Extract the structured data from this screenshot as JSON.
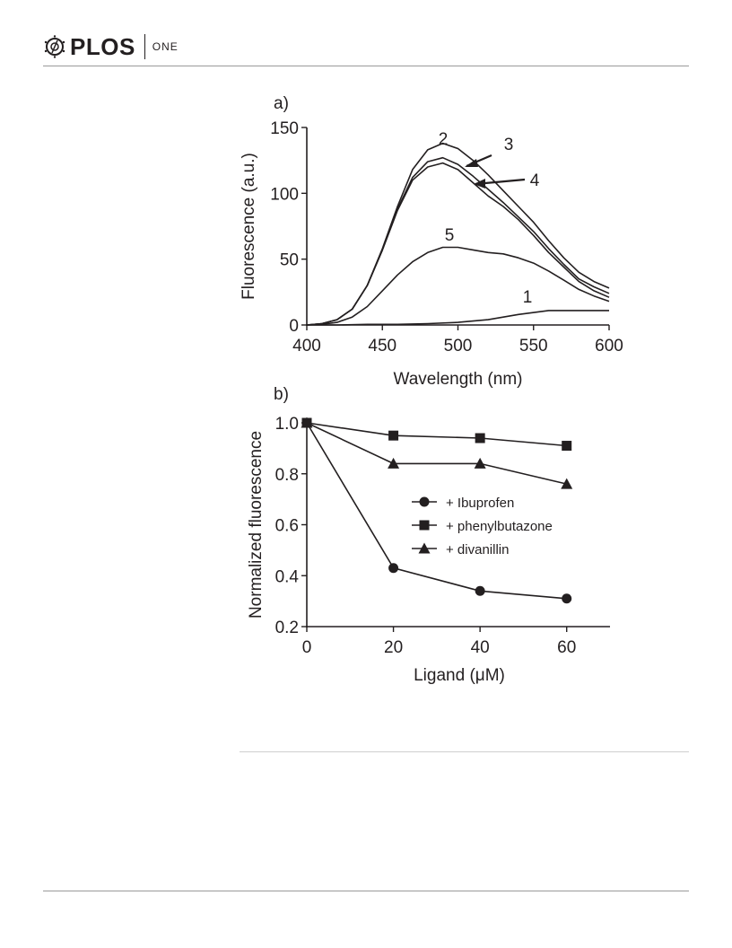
{
  "header": {
    "journal": "PLOS",
    "journal_sub": "ONE"
  },
  "chart_data": [
    {
      "panel_label": "a)",
      "type": "line",
      "title": "",
      "xlabel": "Wavelength (nm)",
      "ylabel": "Fluorescence (a.u.)",
      "xlim": [
        400,
        600
      ],
      "ylim": [
        0,
        150
      ],
      "x_ticks": [
        400,
        450,
        500,
        550,
        600
      ],
      "y_ticks": [
        0,
        50,
        100,
        150
      ],
      "grid": false,
      "series": [
        {
          "name": "1",
          "x": [
            400,
            420,
            440,
            460,
            480,
            500,
            520,
            540,
            560,
            580,
            600
          ],
          "values": [
            0,
            0,
            0.5,
            0.5,
            1,
            2,
            4,
            8,
            11,
            11,
            11
          ]
        },
        {
          "name": "2",
          "x": [
            400,
            410,
            420,
            430,
            440,
            450,
            460,
            470,
            480,
            490,
            500,
            510,
            520,
            530,
            540,
            550,
            560,
            570,
            580,
            590,
            600
          ],
          "values": [
            0,
            1,
            4,
            12,
            30,
            58,
            90,
            118,
            133,
            138,
            134,
            125,
            114,
            102,
            90,
            78,
            64,
            51,
            40,
            33,
            28
          ]
        },
        {
          "name": "3",
          "x": [
            400,
            410,
            420,
            430,
            440,
            450,
            460,
            470,
            480,
            490,
            500,
            510,
            520,
            530,
            540,
            550,
            560,
            570,
            580,
            590,
            600
          ],
          "values": [
            0,
            1,
            4,
            12,
            30,
            57,
            88,
            112,
            124,
            127,
            122,
            113,
            103,
            93,
            82,
            71,
            58,
            46,
            35,
            29,
            24
          ]
        },
        {
          "name": "4",
          "x": [
            400,
            410,
            420,
            430,
            440,
            450,
            460,
            470,
            480,
            490,
            500,
            510,
            520,
            530,
            540,
            550,
            560,
            570,
            580,
            590,
            600
          ],
          "values": [
            0,
            1,
            4,
            12,
            30,
            57,
            87,
            110,
            120,
            123,
            118,
            108,
            98,
            90,
            80,
            68,
            55,
            44,
            33,
            26,
            21
          ]
        },
        {
          "name": "5",
          "x": [
            400,
            410,
            420,
            430,
            440,
            450,
            460,
            470,
            480,
            490,
            500,
            510,
            520,
            530,
            540,
            550,
            560,
            570,
            580,
            590,
            600
          ],
          "values": [
            0,
            0.5,
            2,
            6,
            14,
            26,
            38,
            48,
            55,
            59,
            59,
            57,
            55,
            54,
            51,
            47,
            41,
            34,
            27,
            22,
            18
          ]
        }
      ],
      "annotations": [
        "1",
        "2",
        "3",
        "4",
        "5"
      ]
    },
    {
      "panel_label": "b)",
      "type": "line",
      "title": "",
      "xlabel": "Ligand (μM)",
      "ylabel": "Normalized fluorescence",
      "xlim": [
        0,
        70
      ],
      "ylim": [
        0.2,
        1.0
      ],
      "x_ticks": [
        0,
        20,
        40,
        60
      ],
      "y_ticks": [
        "0.2",
        "0.4",
        "0.6",
        "0.8",
        "1.0"
      ],
      "grid": false,
      "legend_position": "center-right",
      "series": [
        {
          "name": "+ Ibuprofen",
          "marker": "circle",
          "x": [
            0,
            20,
            40,
            60
          ],
          "values": [
            1.0,
            0.43,
            0.34,
            0.31
          ]
        },
        {
          "name": "+ phenylbutazone",
          "marker": "square",
          "x": [
            0,
            20,
            40,
            60
          ],
          "values": [
            1.0,
            0.95,
            0.94,
            0.91
          ]
        },
        {
          "name": "+ divanillin",
          "marker": "triangle",
          "x": [
            0,
            20,
            40,
            60
          ],
          "values": [
            1.0,
            0.84,
            0.84,
            0.76
          ]
        }
      ]
    }
  ]
}
